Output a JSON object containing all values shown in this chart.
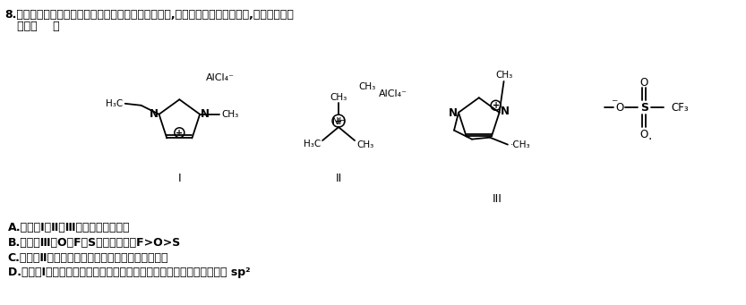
{
  "background_color": "#ffffff",
  "figsize": [
    8.33,
    3.41
  ],
  "dpi": 100,
  "q_line1": "8.下一代储能铝离子电池一般采用离子液体作为电解质,几种离子液体的结构如下,下列说法错误",
  "q_line2": "   的是（    ）",
  "label_I": "I",
  "label_II": "II",
  "label_III": "III",
  "option_A": "A.化合物Ⅰ、Ⅱ、Ⅲ的熔点低、难挥发",
  "option_B": "B.化合物Ⅲ中O、F、S电负性顺序：F>O>S",
  "option_C": "C.化合物Ⅱ中阴、阳离子的空间构型均为正四面体形",
  "option_D": "D.化合物Ⅰ中阳离子结构中环上所有原子共面，其中氮原子的杂化方式为 sp²"
}
